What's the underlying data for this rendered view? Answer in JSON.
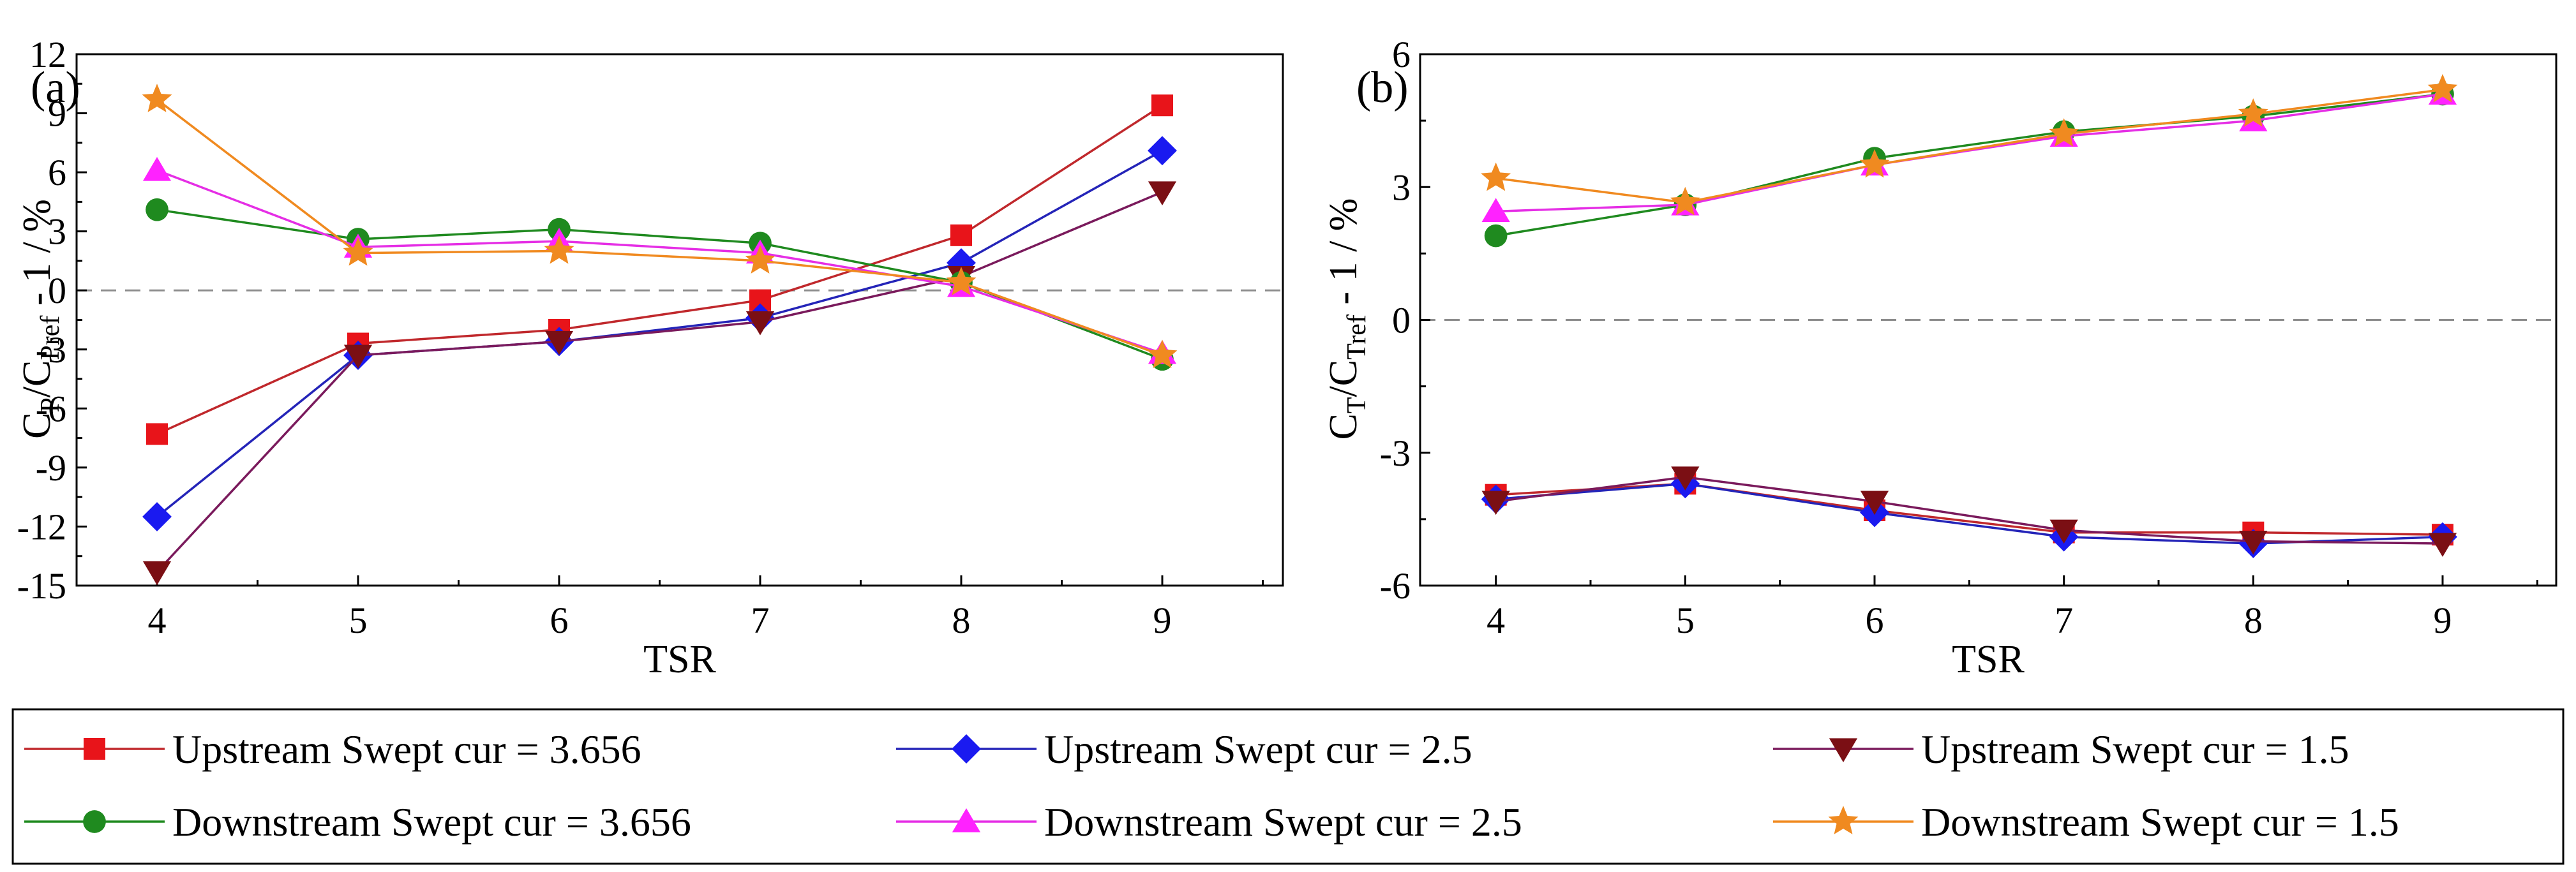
{
  "figure": {
    "legend": [
      {
        "label": "Upstream Swept cur = 3.656",
        "color": "#e8141a",
        "marker": "square",
        "line": "#c0282c"
      },
      {
        "label": "Upstream Swept cur = 2.5",
        "color": "#1a1af0",
        "marker": "diamond",
        "line": "#2424b8"
      },
      {
        "label": "Upstream Swept cur = 1.5",
        "color": "#7b0f14",
        "marker": "triangle-down",
        "line": "#7a1a5c"
      },
      {
        "label": "Downstream Swept cur = 3.656",
        "color": "#1f8a1f",
        "marker": "circle",
        "line": "#1f8a1f"
      },
      {
        "label": "Downstream Swept cur = 2.5",
        "color": "#ff22ff",
        "marker": "triangle-up",
        "line": "#e52ee5"
      },
      {
        "label": "Downstream Swept cur = 1.5",
        "color": "#f08a20",
        "marker": "star",
        "line": "#f08a20"
      }
    ]
  },
  "chart_data": [
    {
      "type": "line",
      "panel_label": "(a)",
      "xlabel": "TSR",
      "ylabel": "C_P/C_Pref - 1 / %",
      "ylabel_parts": {
        "main1": "C",
        "sub1": "P",
        "main2": "/C",
        "sub2": "Pref",
        "tail": " - 1 / %"
      },
      "x": [
        4,
        5,
        6,
        7,
        8,
        9
      ],
      "xlim": [
        3.6,
        9.6
      ],
      "ylim": [
        -15,
        12
      ],
      "yticks": [
        -15,
        -12,
        -9,
        -6,
        -3,
        0,
        3,
        6,
        9,
        12
      ],
      "reference_line": 0,
      "series": [
        {
          "name": "Upstream Swept cur = 3.656",
          "values": [
            -7.3,
            -2.7,
            -2.0,
            -0.5,
            2.8,
            9.4
          ]
        },
        {
          "name": "Upstream Swept cur = 2.5",
          "values": [
            -11.5,
            -3.3,
            -2.6,
            -1.4,
            1.4,
            7.1
          ]
        },
        {
          "name": "Upstream Swept cur = 1.5",
          "values": [
            -14.3,
            -3.3,
            -2.6,
            -1.6,
            0.7,
            5.0
          ]
        },
        {
          "name": "Downstream Swept cur = 3.656",
          "values": [
            4.1,
            2.6,
            3.1,
            2.4,
            0.4,
            -3.5
          ]
        },
        {
          "name": "Downstream Swept cur = 2.5",
          "values": [
            6.1,
            2.2,
            2.5,
            1.9,
            0.2,
            -3.2
          ]
        },
        {
          "name": "Downstream Swept cur = 1.5",
          "values": [
            9.7,
            1.9,
            2.0,
            1.5,
            0.4,
            -3.3
          ]
        }
      ]
    },
    {
      "type": "line",
      "panel_label": "(b)",
      "xlabel": "TSR",
      "ylabel": "C_T/C_Tref - 1 / %",
      "ylabel_parts": {
        "main1": "C",
        "sub1": "T",
        "main2": "/C",
        "sub2": "Tref",
        "tail": " - 1 / %"
      },
      "x": [
        4,
        5,
        6,
        7,
        8,
        9
      ],
      "xlim": [
        3.6,
        9.6
      ],
      "ylim": [
        -6,
        6
      ],
      "yticks": [
        -6,
        -3,
        0,
        3,
        6
      ],
      "reference_line": 0,
      "series": [
        {
          "name": "Upstream Swept cur = 3.656",
          "values": [
            -3.95,
            -3.7,
            -4.3,
            -4.8,
            -4.8,
            -4.85
          ]
        },
        {
          "name": "Upstream Swept cur = 2.5",
          "values": [
            -4.05,
            -3.7,
            -4.35,
            -4.9,
            -5.05,
            -4.9
          ]
        },
        {
          "name": "Upstream Swept cur = 1.5",
          "values": [
            -4.1,
            -3.55,
            -4.1,
            -4.75,
            -5.0,
            -5.05
          ]
        },
        {
          "name": "Downstream Swept cur = 3.656",
          "values": [
            1.9,
            2.6,
            3.65,
            4.25,
            4.6,
            5.1
          ]
        },
        {
          "name": "Downstream Swept cur = 2.5",
          "values": [
            2.45,
            2.6,
            3.5,
            4.15,
            4.5,
            5.1
          ]
        },
        {
          "name": "Downstream Swept cur = 1.5",
          "values": [
            3.2,
            2.65,
            3.5,
            4.2,
            4.65,
            5.2
          ]
        }
      ]
    }
  ]
}
